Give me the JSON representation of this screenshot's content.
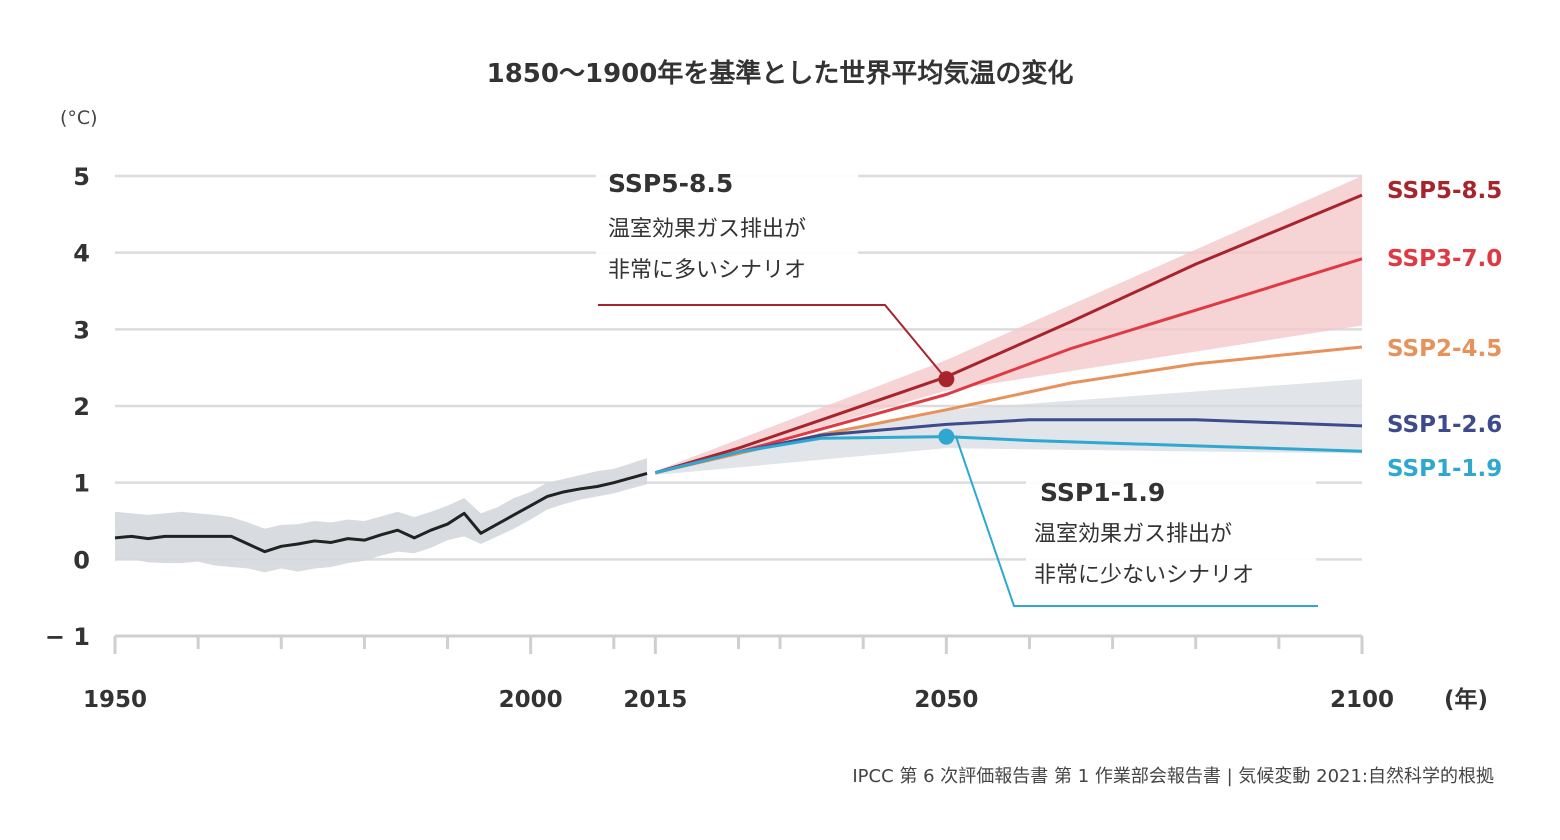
{
  "chart_data": {
    "type": "line",
    "title": "1850〜1900年を基準とした世界平均気温の変化",
    "ylabel": "(°C)",
    "xlabel": "(年)",
    "source": "IPCC 第 6 次評価報告書 第 1 作業部会報告書 | 気候変動 2021:自然科学的根拠",
    "xlim": [
      1950,
      2100
    ],
    "ylim": [
      -1,
      5
    ],
    "yticks": [
      {
        "value": 5,
        "label": "5"
      },
      {
        "value": 4,
        "label": "4"
      },
      {
        "value": 3,
        "label": "3"
      },
      {
        "value": 2,
        "label": "2"
      },
      {
        "value": 1,
        "label": "1"
      },
      {
        "value": 0,
        "label": "0"
      },
      {
        "value": -1,
        "label": "− 1"
      }
    ],
    "xticks": [
      {
        "value": 1950,
        "label": "1950"
      },
      {
        "value": 2000,
        "label": "2000"
      },
      {
        "value": 2015,
        "label": "2015"
      },
      {
        "value": 2050,
        "label": "2050"
      },
      {
        "value": 2100,
        "label": "2100"
      }
    ],
    "xminor": [
      1960,
      1970,
      1980,
      1990,
      2010,
      2025,
      2030,
      2040,
      2060,
      2070,
      2080,
      2090
    ],
    "grid": true,
    "historical": {
      "color": "#222222",
      "band_color": "#d4d8de",
      "x": [
        1950,
        1952,
        1954,
        1956,
        1958,
        1960,
        1962,
        1964,
        1966,
        1968,
        1970,
        1972,
        1974,
        1976,
        1978,
        1980,
        1982,
        1984,
        1986,
        1988,
        1990,
        1992,
        1994,
        1996,
        1998,
        2000,
        2002,
        2004,
        2006,
        2008,
        2010,
        2012,
        2014
      ],
      "y": [
        0.28,
        0.3,
        0.27,
        0.3,
        0.3,
        0.3,
        0.3,
        0.3,
        0.2,
        0.1,
        0.17,
        0.2,
        0.24,
        0.22,
        0.27,
        0.25,
        0.32,
        0.38,
        0.28,
        0.38,
        0.46,
        0.6,
        0.34,
        0.46,
        0.58,
        0.7,
        0.82,
        0.88,
        0.92,
        0.95,
        1.0,
        1.06,
        1.12
      ],
      "band_low": [
        -0.02,
        0.0,
        -0.04,
        -0.05,
        -0.05,
        -0.03,
        -0.08,
        -0.1,
        -0.12,
        -0.17,
        -0.12,
        -0.16,
        -0.12,
        -0.1,
        -0.05,
        -0.02,
        0.05,
        0.1,
        0.08,
        0.15,
        0.25,
        0.3,
        0.2,
        0.3,
        0.4,
        0.52,
        0.65,
        0.72,
        0.78,
        0.82,
        0.86,
        0.92,
        0.98
      ],
      "band_high": [
        0.62,
        0.6,
        0.58,
        0.6,
        0.62,
        0.6,
        0.58,
        0.55,
        0.48,
        0.4,
        0.45,
        0.46,
        0.5,
        0.48,
        0.52,
        0.5,
        0.56,
        0.62,
        0.55,
        0.62,
        0.7,
        0.8,
        0.6,
        0.68,
        0.8,
        0.88,
        1.0,
        1.05,
        1.1,
        1.15,
        1.18,
        1.25,
        1.32
      ]
    },
    "bands": [
      {
        "name": "",
        "color": "#f4c9cc",
        "x": [
          2015,
          2050,
          2100
        ],
        "low": [
          1.1,
          2.2,
          3.05
        ],
        "high": [
          1.15,
          2.6,
          5.0
        ]
      },
      {
        "name": "",
        "color": "#d4d8de",
        "x": [
          2015,
          2050,
          2100
        ],
        "low": [
          1.1,
          1.45,
          1.38
        ],
        "high": [
          1.15,
          1.95,
          2.35
        ]
      }
    ],
    "series": [
      {
        "name": "SSP5-8.5",
        "color": "#a8242c",
        "x": [
          2015,
          2025,
          2035,
          2050,
          2065,
          2080,
          2100
        ],
        "values": [
          1.13,
          1.45,
          1.82,
          2.38,
          3.1,
          3.85,
          4.75
        ]
      },
      {
        "name": "SSP3-7.0",
        "color": "#df3a43",
        "x": [
          2015,
          2025,
          2035,
          2050,
          2065,
          2080,
          2100
        ],
        "values": [
          1.13,
          1.4,
          1.7,
          2.15,
          2.75,
          3.25,
          3.92
        ]
      },
      {
        "name": "SSP2-4.5",
        "color": "#e8925b",
        "x": [
          2015,
          2025,
          2035,
          2050,
          2065,
          2080,
          2100
        ],
        "values": [
          1.13,
          1.38,
          1.63,
          1.95,
          2.3,
          2.55,
          2.77
        ]
      },
      {
        "name": "SSP1-2.6",
        "color": "#3d4b8c",
        "x": [
          2015,
          2025,
          2035,
          2050,
          2060,
          2080,
          2100
        ],
        "values": [
          1.13,
          1.4,
          1.62,
          1.76,
          1.82,
          1.82,
          1.74
        ]
      },
      {
        "name": "SSP1-1.9",
        "color": "#2ea8d0",
        "x": [
          2015,
          2025,
          2035,
          2050,
          2060,
          2080,
          2100
        ],
        "values": [
          1.13,
          1.4,
          1.58,
          1.6,
          1.55,
          1.48,
          1.41
        ]
      }
    ],
    "annotations": [
      {
        "series": "SSP5-8.5",
        "title": "SSP5-8.5",
        "lines": [
          "温室効果ガス排出が",
          "非常に多いシナリオ"
        ],
        "x": 2050,
        "y": 2.35,
        "color": "#a8242c"
      },
      {
        "series": "SSP1-1.9",
        "title": "SSP1-1.9",
        "lines": [
          "温室効果ガス排出が",
          "非常に少ないシナリオ"
        ],
        "x": 2050,
        "y": 1.6,
        "color": "#2ea8d0"
      }
    ]
  }
}
